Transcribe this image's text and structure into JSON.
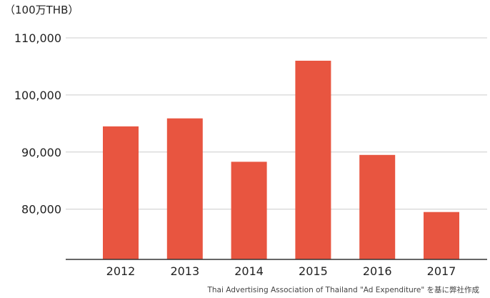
{
  "unit_label": "（100万THB）",
  "source": "Thai Advertising Association of Thailand \"Ad Expenditure\" を基に弊社作成",
  "colors": {
    "bar": "#e85540",
    "grid": "#cccccc",
    "axis": "#333333"
  },
  "chart_data": {
    "type": "bar",
    "categories": [
      "2012",
      "2013",
      "2014",
      "2015",
      "2016",
      "2017"
    ],
    "values": [
      94500,
      95900,
      88300,
      106000,
      89500,
      79500
    ],
    "title": "",
    "xlabel": "",
    "ylabel": "（100万THB）",
    "ylim": [
      71200,
      110000
    ],
    "yticks": [
      80000,
      90000,
      100000,
      110000
    ],
    "ytick_labels": [
      "80,000",
      "90,000",
      "100,000",
      "110,000"
    ],
    "grid": true,
    "legend": "none"
  }
}
